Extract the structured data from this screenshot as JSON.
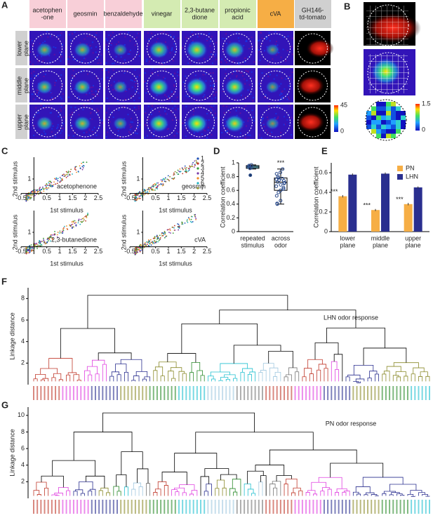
{
  "panel_labels": [
    "A",
    "B",
    "C",
    "D",
    "E",
    "F",
    "G"
  ],
  "panel_a": {
    "odors": [
      {
        "lines": [
          "acetophen",
          "-one"
        ]
      },
      {
        "lines": [
          "geosmin"
        ]
      },
      {
        "lines": [
          "benzaldehyde"
        ]
      },
      {
        "lines": [
          "vinegar"
        ]
      },
      {
        "lines": [
          "2,3-butane",
          "dione"
        ]
      },
      {
        "lines": [
          "propionic",
          "acid"
        ]
      },
      {
        "lines": [
          "cVA"
        ]
      },
      {
        "lines": [
          "GH146-",
          "td-tomato"
        ]
      }
    ],
    "header_colors": [
      "#f8cfd8",
      "#f8cfd8",
      "#f8cfd8",
      "#d4ebb2",
      "#d4ebb2",
      "#d4ebb2",
      "#f6ae45",
      "#d0d0d0"
    ],
    "planes": [
      {
        "lines": [
          "lower",
          "plane"
        ]
      },
      {
        "lines": [
          "middle",
          "plane"
        ]
      },
      {
        "lines": [
          "upper",
          "plane"
        ]
      }
    ],
    "colorbar_ticks": [
      45,
      0
    ]
  },
  "panel_b": {
    "colorbar_ticks": [
      1.5,
      0
    ]
  },
  "panel_c": {
    "plots": [
      {
        "label": "acetophenone"
      },
      {
        "label": "geosmin"
      },
      {
        "label": "2,3-butanedione"
      },
      {
        "label": "cVA"
      }
    ],
    "xlabel": "1st stimulus",
    "ylabel": "2nd stimulus",
    "xlim": [
      -0.5,
      2.5
    ],
    "ylim": [
      -0.5,
      2.5
    ],
    "xticks": [
      -0.5,
      0.5,
      1,
      1.5,
      2,
      2.5
    ],
    "yticks": [
      1
    ],
    "legend": [
      "1",
      "2",
      "3",
      "4",
      "5",
      "6",
      "7"
    ],
    "colors": [
      "#1f4fb5",
      "#c0392b",
      "#3a9a3a",
      "#7a3aa8",
      "#f08a24",
      "#20b0c0",
      "#8a8a2a"
    ]
  },
  "panel_d": {
    "type": "box",
    "ylabel": "Correlation coefficient",
    "ylim": [
      0,
      1
    ],
    "yticks": [
      0,
      0.2,
      0.4,
      0.6,
      0.8,
      1
    ],
    "categories": [
      {
        "lines": [
          "repeated",
          "stimulus"
        ]
      },
      {
        "lines": [
          "across",
          "odor"
        ]
      }
    ],
    "boxes": [
      {
        "min": 0.91,
        "q1": 0.92,
        "median": 0.94,
        "q3": 0.96,
        "max": 0.97,
        "points": [
          0.97,
          0.96,
          0.95,
          0.95,
          0.94,
          0.93,
          0.92,
          0.82
        ]
      },
      {
        "min": 0.4,
        "q1": 0.6,
        "median": 0.72,
        "q3": 0.78,
        "max": 0.91,
        "points": [
          0.91,
          0.86,
          0.84,
          0.8,
          0.78,
          0.77,
          0.76,
          0.75,
          0.74,
          0.72,
          0.71,
          0.7,
          0.68,
          0.66,
          0.64,
          0.62,
          0.6,
          0.57,
          0.52,
          0.45,
          0.41,
          0.4
        ]
      }
    ],
    "annotation": "***",
    "color": "#7fd3e3"
  },
  "panel_e": {
    "type": "bar",
    "ylabel": "Correlation coefficient",
    "ylim": [
      0,
      0.7
    ],
    "yticks": [
      0,
      0.2,
      0.4,
      0.6
    ],
    "categories": [
      {
        "lines": [
          "lower",
          "plane"
        ]
      },
      {
        "lines": [
          "middle",
          "plane"
        ]
      },
      {
        "lines": [
          "upper",
          "plane"
        ]
      }
    ],
    "series": [
      {
        "name": "PN",
        "color": "#f6ae45",
        "values": [
          0.36,
          0.22,
          0.28
        ],
        "errors": [
          0.012,
          0.01,
          0.012
        ]
      },
      {
        "name": "LHN",
        "color": "#2a2f8f",
        "values": [
          0.58,
          0.59,
          0.45
        ],
        "errors": [
          0.012,
          0.012,
          0.01
        ]
      }
    ],
    "annotations": [
      "***",
      "***",
      "***"
    ]
  },
  "panel_f": {
    "title": "LHN odor response",
    "ylabel": "Linkage distance",
    "ylim": [
      0,
      9
    ],
    "yticks": [
      2,
      4,
      6,
      8
    ]
  },
  "panel_g": {
    "title": "PN odor response",
    "ylabel": "Linkage distance",
    "ylim": [
      0,
      11
    ],
    "yticks": [
      2,
      4,
      6,
      8,
      10
    ]
  }
}
